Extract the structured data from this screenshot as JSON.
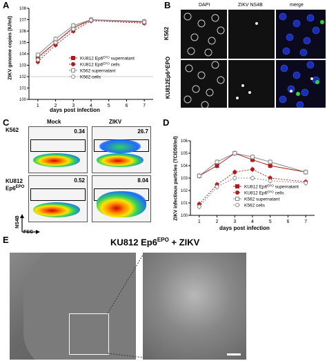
{
  "panels": {
    "A": {
      "letter": "A",
      "ylabel": "ZIKV genome copies (IU/ml)",
      "xlabel": "days post infection",
      "xticks": [
        "1",
        "2",
        "3",
        "4",
        "5",
        "6",
        "7"
      ],
      "yticks": [
        "10^0",
        "10^1",
        "10^2",
        "10^3",
        "10^4",
        "10^5",
        "10^6",
        "10^7",
        "10^8"
      ],
      "legend": [
        {
          "label": "KU812 Ep6^EPO supernatant",
          "color": "#b01a1a",
          "marker": "square"
        },
        {
          "label": "KU812 Ep6^EPO cells",
          "color": "#b01a1a",
          "marker": "circle"
        },
        {
          "label": "K562 supernatant",
          "color": "#888888",
          "marker": "square"
        },
        {
          "label": "K562 cells",
          "color": "#888888",
          "marker": "circle"
        }
      ]
    },
    "B": {
      "letter": "B",
      "col_labels": [
        "DAPI",
        "ZIKV NS4B",
        "merge"
      ],
      "row_labels": [
        "K562",
        "KU812Ep6^EPO"
      ]
    },
    "C": {
      "letter": "C",
      "col_labels": [
        "Mock",
        "ZIKV"
      ],
      "row1_label": "K562",
      "row2_label_a": "KU812",
      "row2_label_b": "Ep6",
      "row2_label_sup": "EPO",
      "values": [
        "0.34",
        "26.7",
        "0.52",
        "8.04"
      ],
      "axis_y": "NS4B",
      "axis_x": "FSC"
    },
    "D": {
      "letter": "D",
      "ylabel": "ZIKV infectious particles (TCID50/ml)",
      "xlabel": "days post infection",
      "xticks": [
        "1",
        "2",
        "3",
        "4",
        "5",
        "6",
        "7"
      ],
      "yticks": [
        "10^0",
        "10^1",
        "10^2",
        "10^3",
        "10^4",
        "10^5",
        "10^6"
      ],
      "legend": [
        {
          "label": "KU812 Ep6^EPO supernatant",
          "color": "#b01a1a",
          "marker": "square"
        },
        {
          "label": "KU812 Ep6^EPO cells",
          "color": "#b01a1a",
          "marker": "circle"
        },
        {
          "label": "K562 supernatant",
          "color": "#888888",
          "marker": "square"
        },
        {
          "label": "K562 cells",
          "color": "#888888",
          "marker": "circle"
        }
      ]
    },
    "E": {
      "letter": "E",
      "title_a": "KU812 Ep6",
      "title_sup": "EPO",
      "title_b": " + ZIKV"
    }
  },
  "chart_data": [
    {
      "type": "line",
      "panel": "A",
      "ylabel": "ZIKV genome copies (IU/ml)",
      "xlabel": "days post infection",
      "yscale": "log",
      "ylim": [
        1,
        100000000
      ],
      "xlim": [
        0.5,
        7.5
      ],
      "x": [
        1,
        2,
        3,
        4,
        7
      ],
      "series": [
        {
          "name": "KU812 Ep6EPO supernatant",
          "values": [
            5000,
            100000,
            2000000,
            10000000,
            6000000
          ]
        },
        {
          "name": "KU812 Ep6EPO cells",
          "values": [
            2000,
            60000,
            1000000,
            8000000,
            5000000
          ]
        },
        {
          "name": "K562 supernatant",
          "values": [
            8000,
            200000,
            3000000,
            10000000,
            7000000
          ]
        },
        {
          "name": "K562 cells",
          "values": [
            3000,
            100000,
            1500000,
            9000000,
            6000000
          ]
        }
      ]
    },
    {
      "type": "line",
      "panel": "D",
      "ylabel": "ZIKV infectious particles (TCID50/ml)",
      "xlabel": "days post infection",
      "yscale": "log",
      "ylim": [
        1,
        1000000
      ],
      "xlim": [
        0.5,
        7.5
      ],
      "x": [
        1,
        2,
        3,
        4,
        5,
        7
      ],
      "series": [
        {
          "name": "KU812 Ep6EPO supernatant",
          "values": [
            1500,
            10000,
            100000,
            30000,
            10000,
            3000
          ]
        },
        {
          "name": "KU812 Ep6EPO cells",
          "values": [
            8,
            300,
            3000,
            5000,
            1000,
            500
          ]
        },
        {
          "name": "K562 supernatant",
          "values": [
            1500,
            20000,
            100000,
            50000,
            20000,
            3000
          ]
        },
        {
          "name": "K562 cells",
          "values": [
            5,
            200,
            1000,
            1000,
            600,
            400
          ]
        }
      ]
    }
  ]
}
